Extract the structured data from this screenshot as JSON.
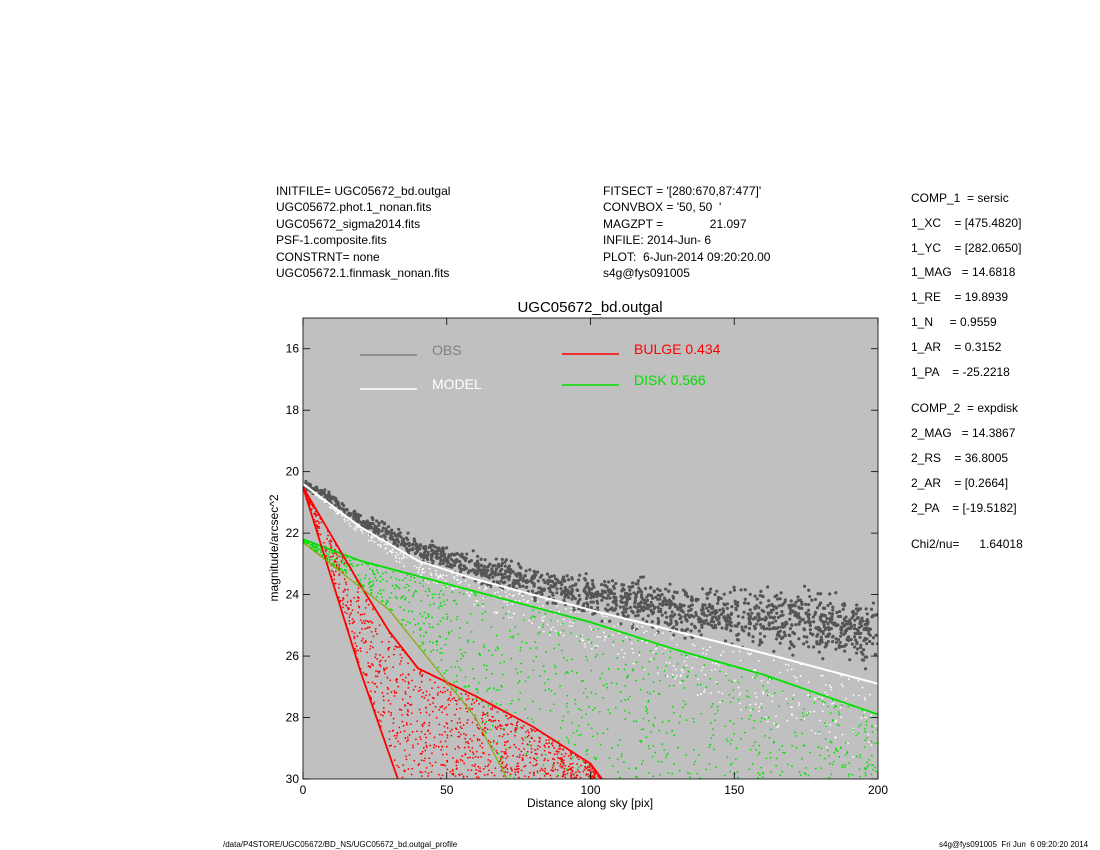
{
  "header_left": [
    "INITFILE= UGC05672_bd.outgal",
    "UGC05672.phot.1_nonan.fits",
    "UGC05672_sigma2014.fits",
    "PSF-1.composite.fits",
    "CONSTRNT= none",
    "UGC05672.1.finmask_nonan.fits"
  ],
  "header_mid": [
    "FITSECT = '[280:670,87:477]'",
    "CONVBOX = '50, 50  '",
    "MAGZPT =              21.097",
    "INFILE: 2014-Jun- 6",
    "PLOT:  6-Jun-2014 09:20:20.00",
    "s4g@fys091005"
  ],
  "params": [
    "COMP_1  = sersic",
    "1_XC    = [475.4820]",
    "1_YC    = [282.0650]",
    "1_MAG   = 14.6818",
    "1_RE    = 19.8939",
    "1_N     = 0.9559",
    "1_AR    = 0.3152",
    "1_PA    = -25.2218",
    "COMP_2  = expdisk",
    "2_MAG   = 14.3867",
    "2_RS    = 36.8005",
    "2_AR    = [0.2664]",
    "2_PA    = [-19.5182]",
    "Chi2/nu=      1.64018"
  ],
  "footer": {
    "left": "/data/P4STORE/UGC05672/BD_NS/UGC05672_bd.outgal_profile",
    "right": "s4g@fys091005  Fri Jun  6 09:20:20 2014"
  },
  "colors": {
    "plot_bg": "#c0c0c0",
    "obs": "#555555",
    "obs_legend": "#808080",
    "model": "#ffffff",
    "bulge": "#ff0000",
    "disk": "#00e000"
  },
  "chart_data": {
    "type": "scatter",
    "title": "UGC05672_bd.outgal",
    "xlabel": "Distance along sky [pix]",
    "ylabel": "magnitude/arcsec^2",
    "xlim": [
      0,
      200
    ],
    "ylim": [
      30,
      15
    ],
    "y_inverted": true,
    "x_ticks": [
      "0",
      "50",
      "100",
      "150",
      "200"
    ],
    "y_ticks": [
      "16",
      "18",
      "20",
      "22",
      "24",
      "26",
      "28",
      "30"
    ],
    "grid": false,
    "legend_position": "top",
    "legend": [
      {
        "label": "OBS",
        "color": "#808080"
      },
      {
        "label": "MODEL",
        "color": "#ffffff"
      },
      {
        "label": "BULGE  0.434",
        "color": "#ff0000"
      },
      {
        "label": "DISK  0.566",
        "color": "#00e000"
      }
    ],
    "series": [
      {
        "name": "OBS",
        "x": [
          0,
          10,
          20,
          40,
          60,
          80,
          100,
          130,
          160,
          200
        ],
        "y": [
          20.4,
          20.9,
          21.6,
          22.5,
          23.1,
          23.6,
          24.0,
          24.5,
          24.8,
          25.2
        ]
      },
      {
        "name": "MODEL",
        "x": [
          0,
          10,
          20,
          40,
          60,
          80,
          100,
          130,
          160,
          200
        ],
        "y": [
          20.4,
          21.1,
          21.8,
          22.9,
          23.5,
          24.0,
          24.5,
          25.2,
          25.9,
          26.9
        ]
      },
      {
        "name": "BULGE  0.434",
        "x": [
          0,
          10,
          20,
          30,
          40,
          60,
          80,
          100,
          104
        ],
        "y": [
          20.5,
          22.1,
          23.7,
          25.2,
          26.4,
          27.3,
          28.3,
          29.5,
          30.0
        ]
      },
      {
        "name": "DISK  0.566",
        "x": [
          0,
          20,
          40,
          60,
          80,
          100,
          130,
          160,
          200
        ],
        "y": [
          22.2,
          22.9,
          23.4,
          23.9,
          24.4,
          24.9,
          25.8,
          26.6,
          27.9
        ]
      }
    ]
  }
}
